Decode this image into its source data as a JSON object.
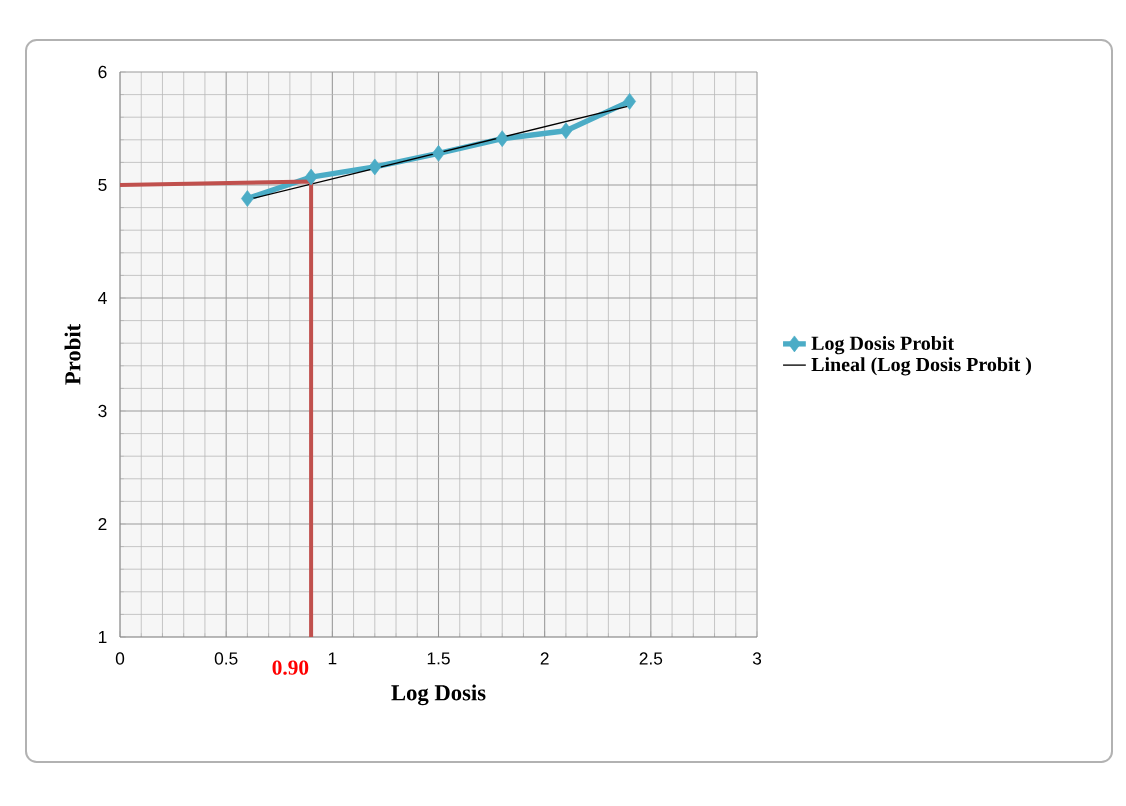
{
  "chart_data": {
    "type": "line",
    "xlabel": "Log Dosis",
    "ylabel": "Probit",
    "xlim": [
      0,
      3
    ],
    "ylim": [
      1,
      6
    ],
    "xticks": [
      0,
      0.5,
      1,
      1.5,
      2,
      2.5,
      3
    ],
    "yticks": [
      1,
      2,
      3,
      4,
      5,
      6
    ],
    "grid": true,
    "legend": "right",
    "marker": "diamond",
    "line_style": "solid",
    "series": [
      {
        "name": "Log Dosis Probit",
        "color": "#4bacc6",
        "x": [
          0.6,
          0.9,
          1.2,
          1.5,
          1.8,
          2.1,
          2.4
        ],
        "values": [
          4.88,
          5.07,
          5.16,
          5.28,
          5.41,
          5.48,
          5.74
        ]
      },
      {
        "name": "Lineal (Log Dosis Probit )",
        "type": "line",
        "marker": "none",
        "color": "#000000",
        "x": [
          0.6,
          2.4
        ],
        "values": [
          4.87,
          5.7
        ]
      },
      {
        "type": "line",
        "marker": "none",
        "color": "#c0504d",
        "x": [
          0,
          0.9,
          0.9
        ],
        "values": [
          5,
          5.03,
          1
        ]
      }
    ],
    "annotations": [
      {
        "text": "0.90",
        "x": 0.9,
        "y": 1
      }
    ]
  }
}
